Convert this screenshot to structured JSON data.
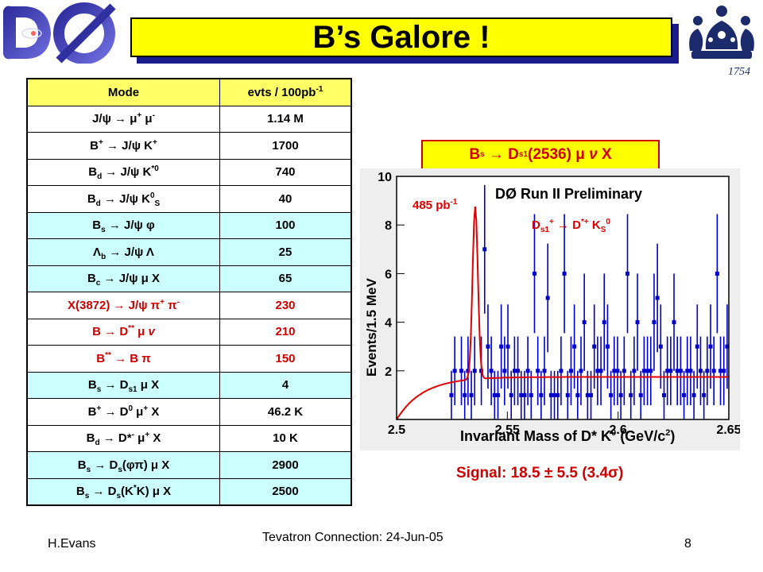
{
  "title": "B’s Galore !",
  "table": {
    "header": {
      "mode": "Mode",
      "evts": "evts / 100pb",
      "evts_sup": "-1"
    },
    "rows": [
      {
        "evts": "1.14 M"
      },
      {
        "evts": "1700"
      },
      {
        "evts": "740"
      },
      {
        "evts": "40"
      },
      {
        "evts": "100"
      },
      {
        "evts": "25"
      },
      {
        "evts": "65"
      },
      {
        "evts": "230"
      },
      {
        "evts": "210"
      },
      {
        "evts": "150"
      },
      {
        "evts": "4"
      },
      {
        "evts": "46.2 K"
      },
      {
        "evts": "10 K"
      },
      {
        "evts": "2900"
      },
      {
        "evts": "2500"
      }
    ],
    "colors": {
      "header": "#ffff66",
      "white": "#ffffff",
      "cyan": "#ccffff",
      "red_text": "#cc0000"
    }
  },
  "chart_data": {
    "type": "bar",
    "title": "DØ Run II Preliminary",
    "xlabel": "Invariant Mass of D* K",
    "xlabel_sup": "0",
    "xlabel_units": "(GeV/c",
    "xlabel_units_sup": "2",
    "xlabel_units_close": ")",
    "ylabel": "Events/1.5 MeV",
    "xlim": [
      2.5,
      2.65
    ],
    "ylim": [
      0,
      10
    ],
    "xticks": [
      "2.5",
      "2.55",
      "2.6",
      "2.65"
    ],
    "yticks": [
      "2",
      "4",
      "6",
      "8",
      "10"
    ],
    "luminosity_label": "485 pb",
    "luminosity_sup": "-1",
    "channel_label": "D",
    "bin_width": 0.0015,
    "x": [
      2.5,
      2.5015,
      2.503,
      2.5045,
      2.506,
      2.5075,
      2.509,
      2.5105,
      2.512,
      2.5135,
      2.515,
      2.5165,
      2.518,
      2.5195,
      2.521,
      2.5225,
      2.524,
      2.5255,
      2.527,
      2.5285,
      2.53,
      2.5315,
      2.533,
      2.5345,
      2.536,
      2.5375,
      2.539,
      2.5405,
      2.542,
      2.5435,
      2.545,
      2.5465,
      2.548,
      2.5495,
      2.551,
      2.5525,
      2.554,
      2.5555,
      2.557,
      2.5585,
      2.56,
      2.5615,
      2.563,
      2.5645,
      2.566,
      2.5675,
      2.569,
      2.5705,
      2.572,
      2.5735,
      2.575,
      2.5765,
      2.578,
      2.5795,
      2.581,
      2.5825,
      2.584,
      2.5855,
      2.587,
      2.5885,
      2.59,
      2.5915,
      2.593,
      2.5945,
      2.596,
      2.5975,
      2.599,
      2.6005,
      2.602,
      2.6035,
      2.605,
      2.6065,
      2.608,
      2.6095,
      2.611,
      2.6125,
      2.614,
      2.6155,
      2.617,
      2.6185,
      2.62,
      2.6215,
      2.623,
      2.6245,
      2.626,
      2.6275,
      2.629,
      2.6305,
      2.632,
      2.6335,
      2.635,
      2.6365,
      2.638,
      2.6395,
      2.641,
      2.6425,
      2.644,
      2.6455,
      2.647,
      2.6485
    ],
    "values": [
      0,
      0,
      0,
      0,
      0,
      0,
      0,
      0,
      0,
      0,
      0,
      0,
      0,
      0,
      0,
      0,
      1,
      2,
      0,
      2,
      1,
      2,
      1,
      2,
      0,
      2,
      7,
      3,
      2,
      1,
      1,
      3,
      2,
      3,
      1,
      2,
      2,
      1,
      1,
      2,
      1,
      6,
      2,
      1,
      2,
      5,
      1,
      1,
      1,
      2,
      6,
      1,
      2,
      3,
      1,
      2,
      4,
      1,
      1,
      3,
      2,
      2,
      4,
      3,
      1,
      2,
      2,
      1,
      2,
      6,
      1,
      2,
      4,
      1,
      2,
      2,
      2,
      4,
      5,
      3,
      1,
      2,
      2,
      4,
      2,
      2,
      1,
      2,
      2,
      1,
      3,
      2,
      1,
      2,
      3,
      2,
      6,
      2,
      2,
      3
    ],
    "fit": {
      "background": 1.75,
      "peak_mass": 2.5355,
      "peak_height": 7.1,
      "sigma": 0.0012,
      "threshold": 2.5,
      "color": "#e00000"
    },
    "bar_color": "#0000cc"
  },
  "decay_label": {
    "text_pre": "B",
    "text_sub": "s",
    "text_mid": "→ D",
    "text_sub2": "s1",
    "text_post": "(2536)",
    "mu": "μ",
    "nu": "ν",
    "x": "X"
  },
  "signal": {
    "text": "Signal: 18.5 ± 5.5 (3.4",
    "sigma": "σ",
    "close": ")"
  },
  "footer": {
    "author": "H.Evans",
    "conference": "Tevatron Connection: 24-Jun-05",
    "page": "8"
  },
  "accent_color": "#d00000"
}
